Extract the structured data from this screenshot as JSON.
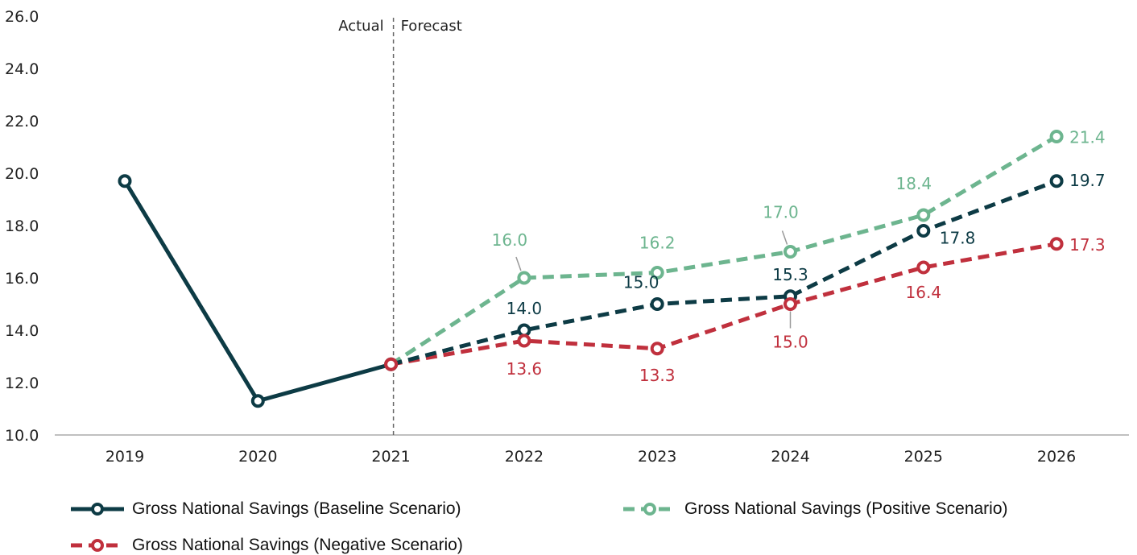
{
  "chart_data": {
    "type": "line",
    "categories": [
      "2019",
      "2020",
      "2021",
      "2022",
      "2023",
      "2024",
      "2025",
      "2026"
    ],
    "ylim": [
      10,
      26
    ],
    "yticks": [
      "10.0",
      "12.0",
      "14.0",
      "16.0",
      "18.0",
      "20.0",
      "22.0",
      "24.0",
      "26.0"
    ],
    "grid": false,
    "divider": {
      "after_category": "2021",
      "left_label": "Actual",
      "right_label": "Forecast"
    },
    "series": [
      {
        "key": "baseline",
        "name": "Gross National Savings (Baseline Scenario)",
        "color": "#0d3b45",
        "values": [
          19.7,
          11.3,
          12.7,
          14.0,
          15.0,
          15.3,
          17.8,
          19.7
        ],
        "labels": [
          "",
          "",
          "",
          "14.0",
          "15.0",
          "15.3",
          "17.8",
          "19.7"
        ]
      },
      {
        "key": "positive",
        "name": "Gross National Savings (Positive Scenario)",
        "color": "#6db58f",
        "values": [
          null,
          null,
          12.7,
          16.0,
          16.2,
          17.0,
          18.4,
          21.4
        ],
        "labels": [
          "",
          "",
          "",
          "16.0",
          "16.2",
          "17.0",
          "18.4",
          "21.4"
        ]
      },
      {
        "key": "negative",
        "name": "Gross National Savings (Negative Scenario)",
        "color": "#c0303d",
        "values": [
          null,
          null,
          12.7,
          13.6,
          13.3,
          15.0,
          16.4,
          17.3
        ],
        "labels": [
          "",
          "",
          "",
          "13.6",
          "13.3",
          "15.0",
          "16.4",
          "17.3"
        ]
      }
    ],
    "legend_position": "bottom"
  }
}
